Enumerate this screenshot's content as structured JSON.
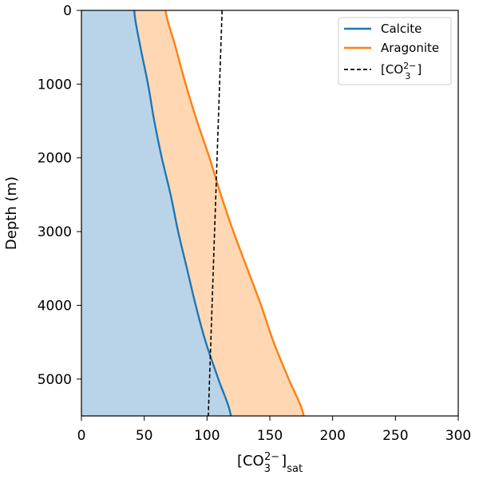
{
  "chart_data": {
    "type": "area",
    "xlabel": {
      "base": "[CO",
      "sub1": "3",
      "sup": "2−",
      "mid": "]",
      "sub2": "sat"
    },
    "ylabel": "Depth (m)",
    "xlim": [
      0,
      300
    ],
    "ylim": [
      5500,
      0
    ],
    "y_inverted": true,
    "xticks": [
      "0",
      "50",
      "100",
      "150",
      "200",
      "250",
      "300"
    ],
    "yticks": [
      "0",
      "1000",
      "2000",
      "3000",
      "4000",
      "5000"
    ],
    "grid": false,
    "legend_position": "top-right",
    "series": [
      {
        "name": "Calcite",
        "color": "#1f77b4",
        "fill": "#b9d4e8",
        "line_style": "solid",
        "depth": [
          0,
          500,
          1000,
          1500,
          2000,
          2500,
          3000,
          3500,
          4000,
          4500,
          5000,
          5500
        ],
        "values": [
          42,
          47,
          53,
          58,
          64,
          71,
          77,
          84,
          91,
          99,
          109,
          119
        ]
      },
      {
        "name": "Aragonite",
        "color": "#ff7f0e",
        "fill": "#ffd8b3",
        "line_style": "solid",
        "depth": [
          0,
          500,
          1000,
          1500,
          2000,
          2500,
          3000,
          3500,
          4000,
          4500,
          5000,
          5500
        ],
        "values": [
          67,
          75,
          83,
          92,
          102,
          111,
          121,
          132,
          143,
          153,
          165,
          177
        ]
      },
      {
        "name": "[CO₃²⁻]",
        "legend_parts": {
          "base": "[CO",
          "sub": "3",
          "sup": "2−",
          "end": "]"
        },
        "color": "#000000",
        "line_style": "dashed",
        "depth": [
          0,
          5500
        ],
        "values": [
          112,
          101
        ]
      }
    ]
  }
}
